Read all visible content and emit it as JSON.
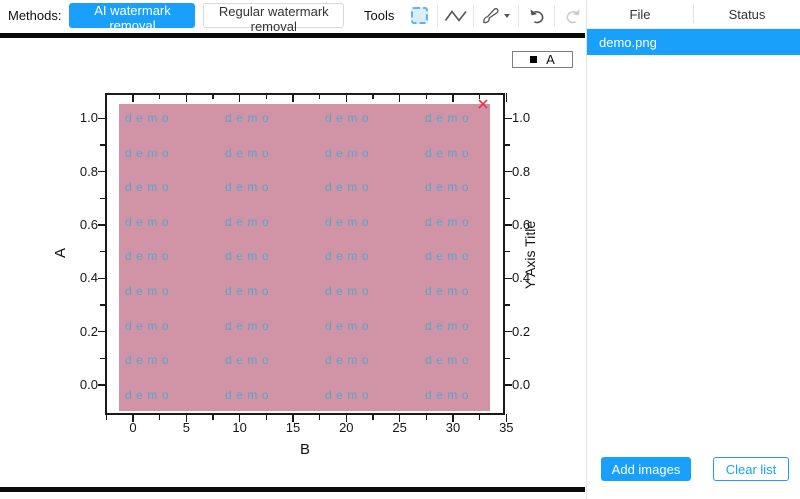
{
  "toolbar": {
    "methods_label": "Methods:",
    "ai_button_label": "AI watermark removal",
    "regular_button_label": "Regular watermark removal",
    "tools_label": "Tools",
    "icons": [
      "rect-select-icon",
      "polyline-icon",
      "brush-icon",
      "caret-down-icon",
      "undo-icon",
      "redo-icon"
    ]
  },
  "panel": {
    "file_header": "File",
    "status_header": "Status",
    "files": [
      {
        "name": "demo.png",
        "status": "",
        "selected": true
      }
    ],
    "add_images_label": "Add images",
    "clear_list_label": "Clear list"
  },
  "colors": {
    "accent": "#18a0fb",
    "watermark_fill": "#d194a7",
    "watermark_text_color": "#54a6cb",
    "axis_color": "#1a1a1a",
    "remove_x_color": "#e8334a",
    "legend_marker_color": "#000000"
  },
  "chart_data": {
    "type": "scatter",
    "title": "",
    "xlabel": "B",
    "ylabel": "A",
    "ylabel_right": "Y Axis Title",
    "xlim": [
      -2.6,
      35
    ],
    "ylim": [
      -0.11,
      1.09
    ],
    "grid": false,
    "x_ticks": [
      0,
      5,
      10,
      15,
      20,
      25,
      30,
      35
    ],
    "x_minor_ticks": [
      -2.5,
      2.5,
      7.5,
      12.5,
      17.5,
      22.5,
      27.5,
      32.5
    ],
    "y_ticks": [
      {
        "v": 0.0,
        "label": "0.0"
      },
      {
        "v": 0.2,
        "label": "0.2"
      },
      {
        "v": 0.4,
        "label": "0.4"
      },
      {
        "v": 0.6,
        "label": "0.6"
      },
      {
        "v": 0.8,
        "label": "0.8"
      },
      {
        "v": 1.0,
        "label": "1.0"
      }
    ],
    "y_minor_ticks": [
      0.1,
      0.3,
      0.5,
      0.7,
      0.9
    ],
    "legend": {
      "position": "top-right",
      "entries": [
        {
          "label": "A",
          "marker": "filled-square",
          "color": "#000000"
        }
      ]
    },
    "series": [
      {
        "name": "A",
        "points": []
      }
    ],
    "watermark_overlay": {
      "text": "demo",
      "rows": 9,
      "cols": 4
    }
  }
}
